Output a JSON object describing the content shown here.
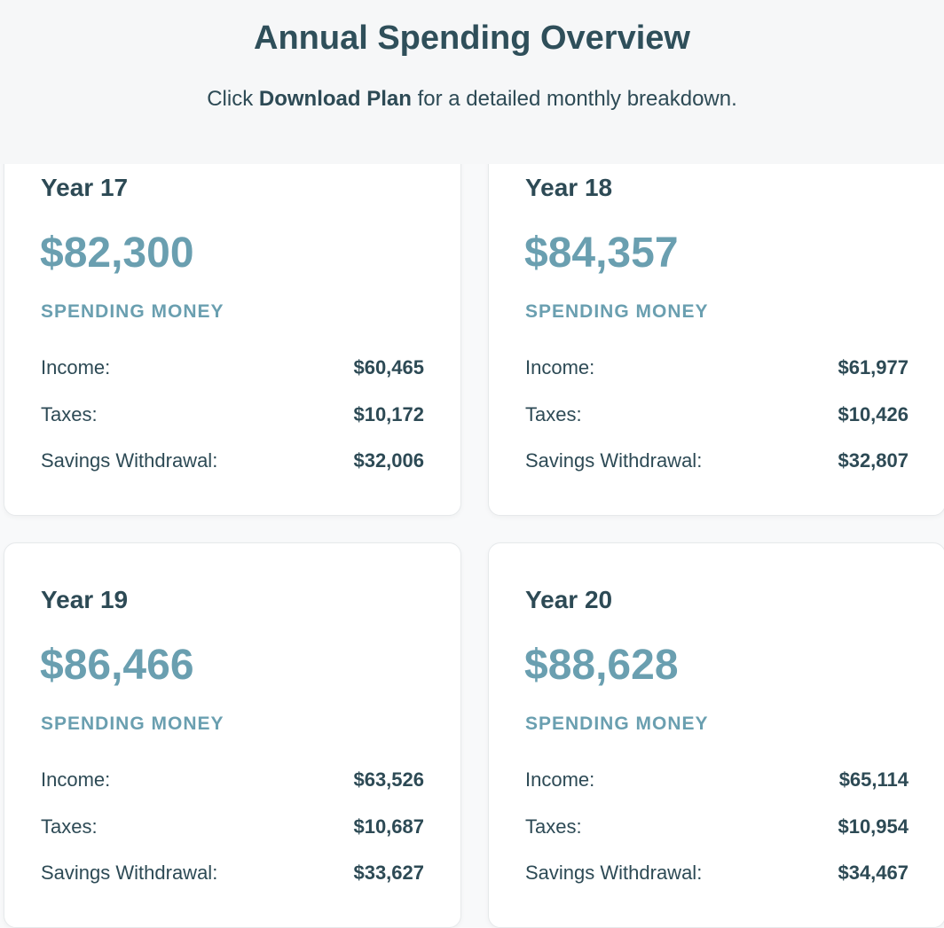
{
  "header": {
    "title": "Annual Spending Overview",
    "subtitle": {
      "before": "Click",
      "emphasis": "Download Plan",
      "after": "for a detailed monthly breakdown."
    }
  },
  "cards": [
    {
      "year": "Year 17",
      "amount": "$82,300",
      "amount_label": "SPENDING MONEY",
      "rows": [
        {
          "label": "Income:",
          "value": "$60,465"
        },
        {
          "label": "Taxes:",
          "value": "$10,172"
        },
        {
          "label": "Savings Withdrawal:",
          "value": "$32,006"
        }
      ]
    },
    {
      "year": "Year 18",
      "amount": "$84,357",
      "amount_label": "SPENDING MONEY",
      "rows": [
        {
          "label": "Income:",
          "value": "$61,977"
        },
        {
          "label": "Taxes:",
          "value": "$10,426"
        },
        {
          "label": "Savings Withdrawal:",
          "value": "$32,807"
        }
      ]
    },
    {
      "year": "Year 19",
      "amount": "$86,466",
      "amount_label": "SPENDING MONEY",
      "rows": [
        {
          "label": "Income:",
          "value": "$63,526"
        },
        {
          "label": "Taxes:",
          "value": "$10,687"
        },
        {
          "label": "Savings Withdrawal:",
          "value": "$33,627"
        }
      ]
    },
    {
      "year": "Year 20",
      "amount": "$88,628",
      "amount_label": "SPENDING MONEY",
      "rows": [
        {
          "label": "Income:",
          "value": "$65,114"
        },
        {
          "label": "Taxes:",
          "value": "$10,954"
        },
        {
          "label": "Savings Withdrawal:",
          "value": "$34,467"
        }
      ]
    }
  ]
}
